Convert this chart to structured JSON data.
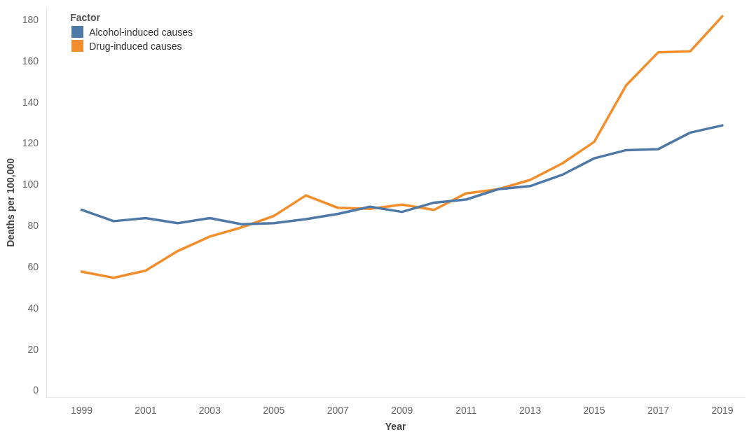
{
  "chart_data": {
    "type": "line",
    "xlabel": "Year",
    "ylabel": "Deaths per 100,000",
    "legend_title": "Factor",
    "legend": "top left",
    "grid": false,
    "marker": "none",
    "line_style": "solid",
    "x": [
      1999,
      2000,
      2001,
      2002,
      2003,
      2004,
      2005,
      2006,
      2007,
      2008,
      2009,
      2010,
      2011,
      2012,
      2013,
      2014,
      2015,
      2016,
      2017,
      2018,
      2019
    ],
    "xlim": [
      1997.9,
      2019.7
    ],
    "xticks": [
      1999,
      2001,
      2003,
      2005,
      2007,
      2009,
      2011,
      2013,
      2015,
      2017,
      2019
    ],
    "ylim": [
      -3,
      186
    ],
    "yticks": [
      0,
      20,
      40,
      60,
      80,
      100,
      120,
      140,
      160,
      180
    ],
    "series": [
      {
        "name": "Alcohol-induced causes",
        "color": "#4e79a7",
        "values": [
          88,
          82.5,
          84,
          81.5,
          84,
          81,
          81.5,
          83.5,
          86,
          89.5,
          87,
          91.5,
          93,
          98,
          99.5,
          105,
          113,
          117,
          117.5,
          125.5,
          129
        ]
      },
      {
        "name": "Drug-induced causes",
        "color": "#f28e2b",
        "values": [
          58,
          55,
          58.5,
          68,
          75,
          79.5,
          85,
          95,
          89,
          88.5,
          90.5,
          88,
          96,
          98,
          102.5,
          110.5,
          121,
          148.5,
          164.5,
          165,
          182
        ]
      }
    ]
  }
}
